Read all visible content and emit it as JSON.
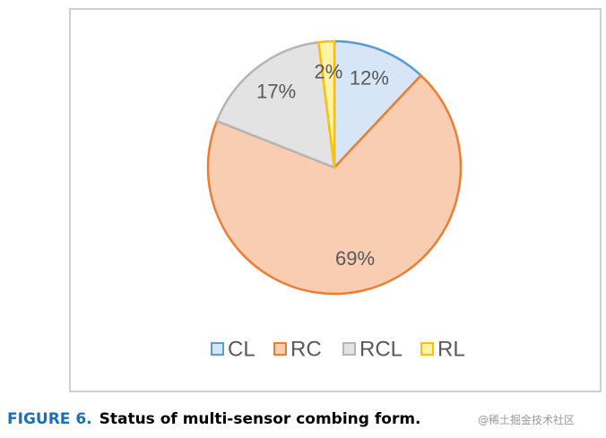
{
  "chart_data": {
    "type": "pie",
    "categories": [
      "CL",
      "RC",
      "RCL",
      "RL"
    ],
    "values": [
      12,
      69,
      17,
      2
    ],
    "value_labels": [
      "12%",
      "69%",
      "17%",
      "2%"
    ],
    "colors": [
      "#d6e6f6",
      "#f9cdb2",
      "#e3e3e3",
      "#fff3a8"
    ],
    "edge_colors": [
      "#5b9bd5",
      "#ed7d31",
      "#b5b5b5",
      "#ffc000"
    ],
    "legend": "bottom"
  },
  "caption": {
    "label": "FIGURE 6.",
    "text": "Status of multi-sensor combing form."
  },
  "watermark": "@稀土掘金技术社区"
}
